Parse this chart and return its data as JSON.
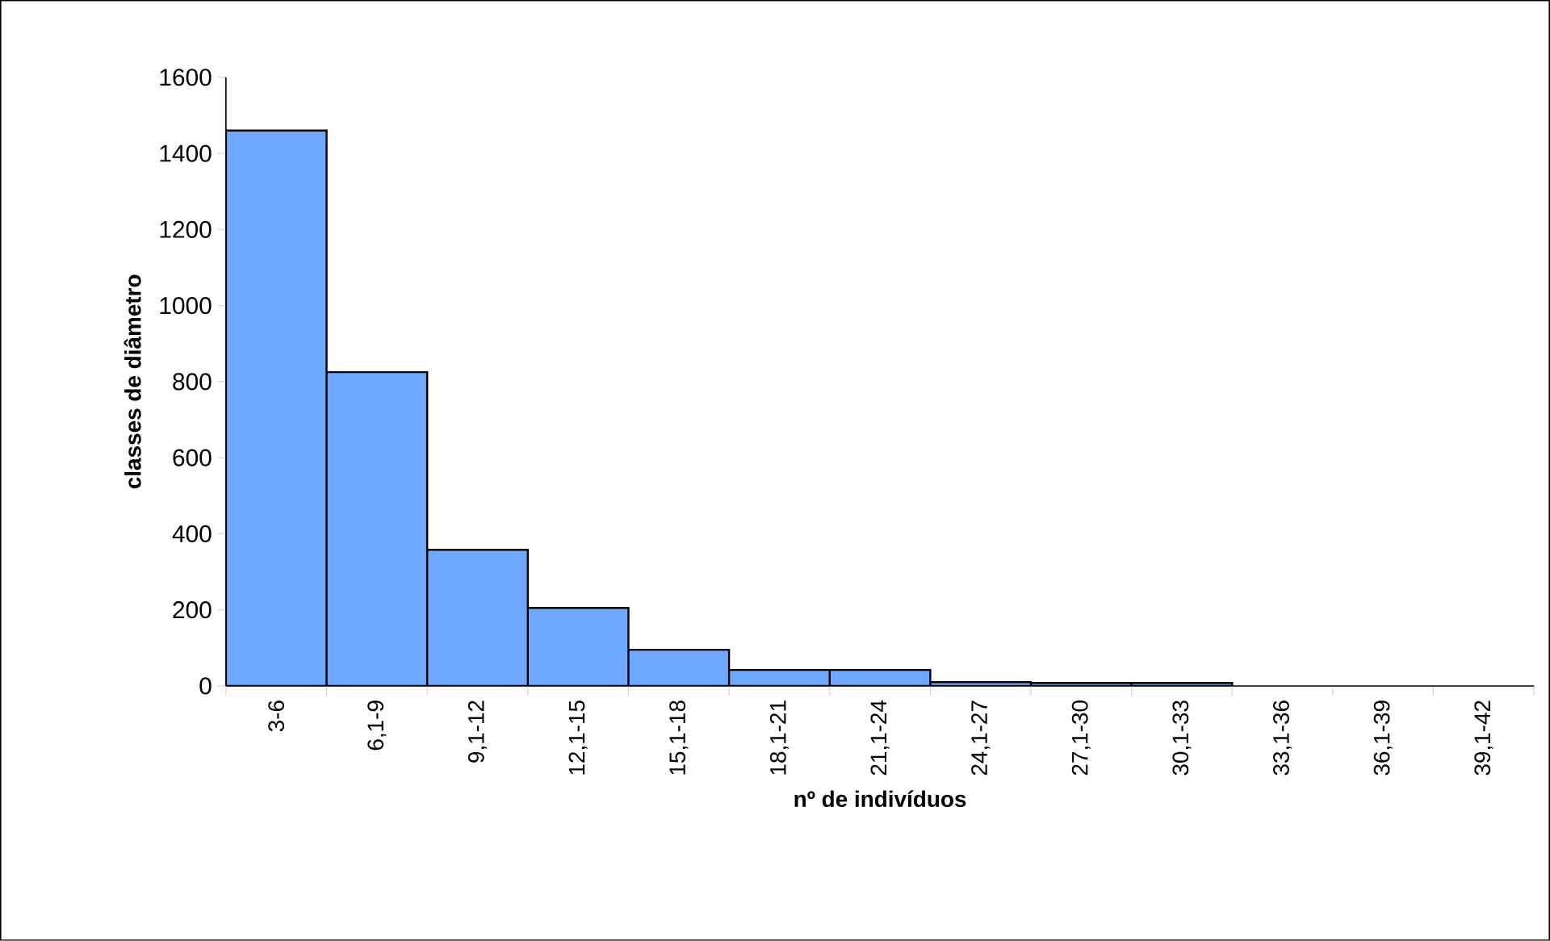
{
  "chart_data": {
    "type": "bar",
    "xlabel": "nº de indivíduos",
    "ylabel": "classes de diâmetro",
    "categories": [
      "3-6",
      "6,1-9",
      "9,1-12",
      "12,1-15",
      "15,1-18",
      "18,1-21",
      "21,1-24",
      "24,1-27",
      "27,1-30",
      "30,1-33",
      "33,1-36",
      "36,1-39",
      "39,1-42"
    ],
    "values": [
      1460,
      825,
      358,
      205,
      95,
      42,
      42,
      10,
      8,
      8,
      0,
      0,
      0
    ],
    "color": "#6fa8ff",
    "ylim": [
      0,
      1600
    ],
    "yticks": [
      0,
      200,
      400,
      600,
      800,
      1000,
      1200,
      1400,
      1600
    ],
    "grid": false
  }
}
